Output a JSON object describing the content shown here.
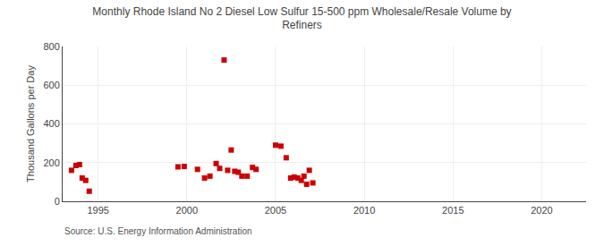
{
  "chart_data": {
    "type": "scatter",
    "title": "Monthly Rhode Island No 2 Diesel Low Sulfur 15-500 ppm Wholesale/Resale Volume by\nRefiners",
    "ylabel": "Thousand Gallons per Day",
    "source": "Source: U.S. Energy Information Administration",
    "color": "#cc0000",
    "marker": "square",
    "grid": true,
    "xlim": [
      1993.0,
      2022.5
    ],
    "ylim": [
      0,
      800
    ],
    "xticks": [
      1995,
      2000,
      2005,
      2010,
      2015,
      2020
    ],
    "yticks": [
      0,
      200,
      400,
      600,
      800
    ],
    "x": [
      1993.5,
      1993.75,
      1993.95,
      1994.1,
      1994.3,
      1994.5,
      1999.5,
      1999.85,
      2000.6,
      2001.0,
      2001.3,
      2001.65,
      2001.85,
      2002.1,
      2002.3,
      2002.5,
      2002.7,
      2002.9,
      2003.1,
      2003.4,
      2003.7,
      2003.9,
      2005.0,
      2005.3,
      2005.6,
      2005.85,
      2006.05,
      2006.25,
      2006.45,
      2006.6,
      2006.75,
      2006.9,
      2007.1
    ],
    "values": [
      160,
      185,
      190,
      120,
      108,
      52,
      178,
      180,
      165,
      120,
      130,
      195,
      170,
      730,
      160,
      265,
      155,
      150,
      130,
      130,
      175,
      165,
      290,
      285,
      225,
      120,
      125,
      120,
      108,
      130,
      88,
      160,
      95
    ]
  }
}
